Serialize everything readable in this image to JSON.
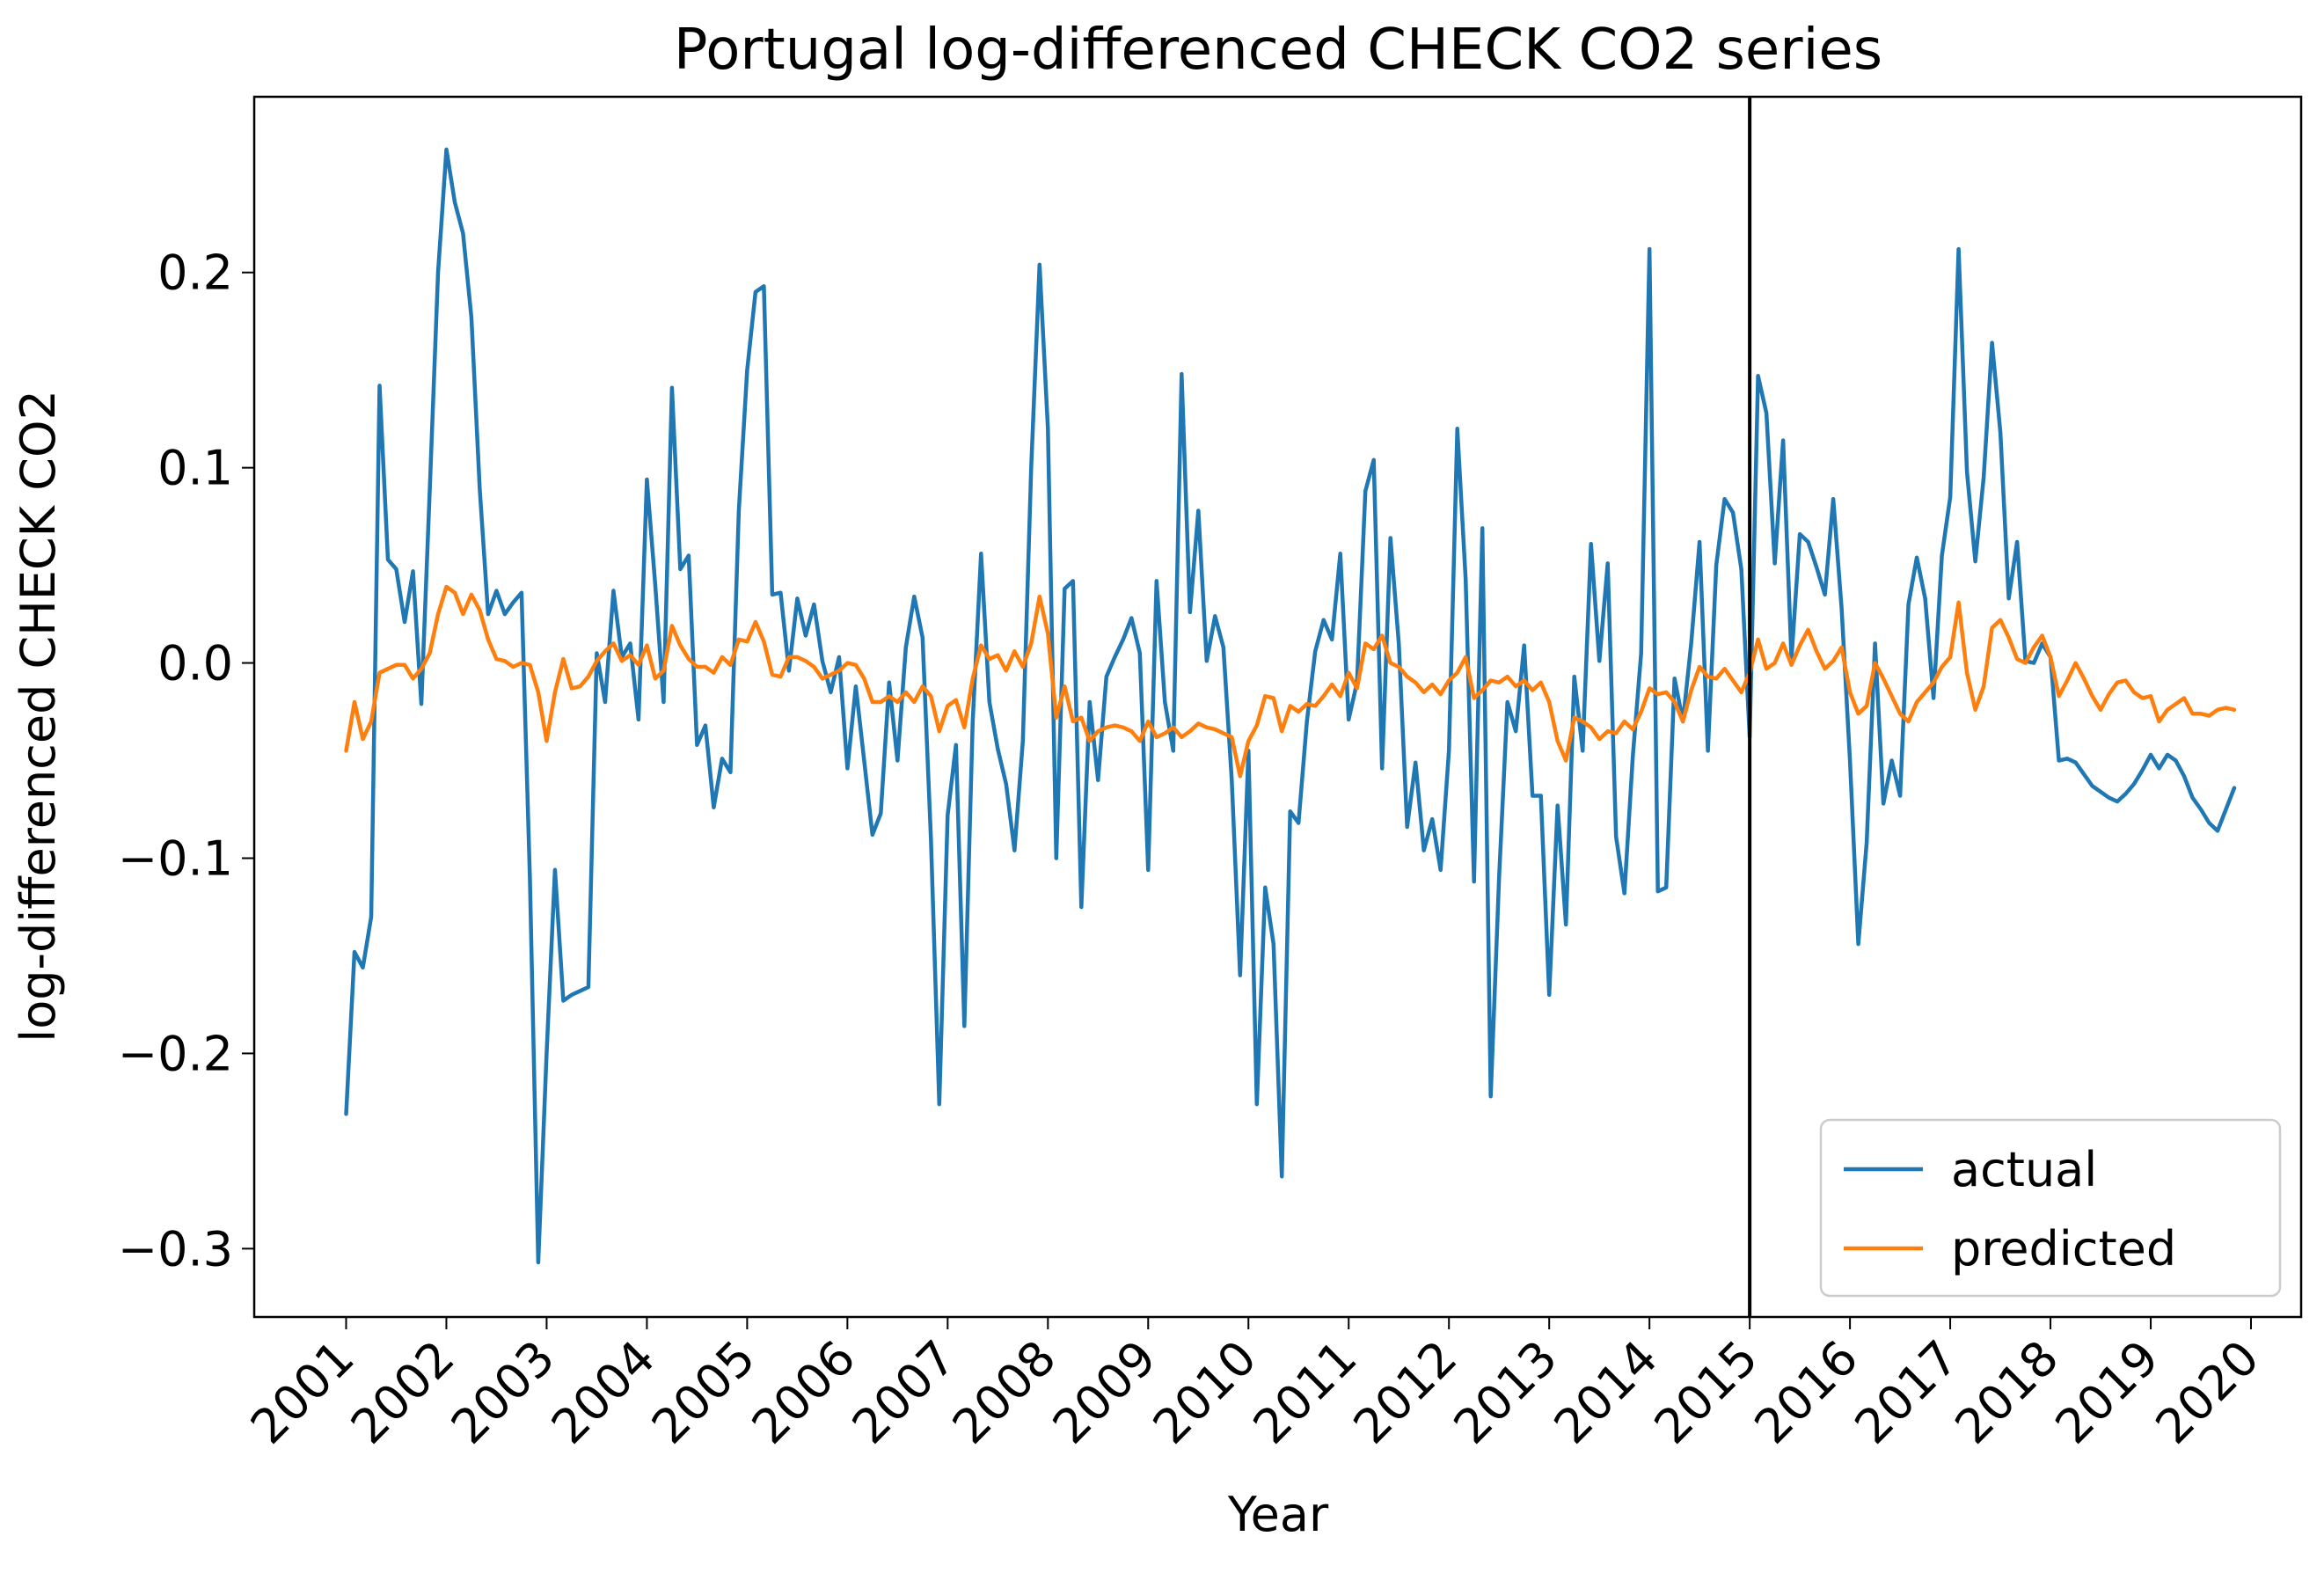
{
  "chart_data": {
    "type": "line",
    "title": "Portugal log-differenced CHECK CO2 series",
    "xlabel": "Year",
    "ylabel": "log-differenced CHECK CO2",
    "x_ticks": [
      "2001",
      "2002",
      "2003",
      "2004",
      "2005",
      "2006",
      "2007",
      "2008",
      "2009",
      "2010",
      "2011",
      "2012",
      "2013",
      "2014",
      "2015",
      "2016",
      "2017",
      "2018",
      "2019",
      "2020"
    ],
    "y_ticks": [
      0.2,
      0.1,
      0.0,
      -0.1,
      -0.2,
      -0.3
    ],
    "y_tick_labels": [
      "0.2",
      "0.1",
      "0.0",
      "−0.1",
      "−0.2",
      "−0.3"
    ],
    "xlim": [
      "2000-02",
      "2020-07"
    ],
    "ylim": [
      -0.335,
      0.29
    ],
    "vline": "2015-01",
    "legend_position": "lower-right",
    "colors": {
      "actual": "#1f77b4",
      "predicted": "#ff7f0e",
      "vline": "#000000"
    },
    "series": [
      {
        "name": "actual",
        "start": "2001-01",
        "values": [
          -0.231,
          -0.148,
          -0.156,
          -0.13,
          0.142,
          0.053,
          0.048,
          0.021,
          0.047,
          -0.021,
          0.088,
          0.2,
          0.263,
          0.236,
          0.22,
          0.177,
          0.089,
          0.025,
          0.037,
          0.025,
          0.031,
          0.036,
          -0.11,
          -0.307,
          -0.2,
          -0.106,
          -0.173,
          -0.17,
          -0.168,
          -0.166,
          0.005,
          -0.02,
          0.037,
          0.003,
          0.01,
          -0.029,
          0.094,
          0.04,
          -0.02,
          0.141,
          0.048,
          0.055,
          -0.042,
          -0.032,
          -0.074,
          -0.049,
          -0.056,
          0.078,
          0.15,
          0.19,
          0.193,
          0.035,
          0.036,
          -0.004,
          0.033,
          0.014,
          0.03,
          0.001,
          -0.015,
          0.003,
          -0.054,
          -0.012,
          -0.05,
          -0.088,
          -0.077,
          -0.01,
          -0.05,
          0.008,
          0.034,
          0.013,
          -0.09,
          -0.226,
          -0.078,
          -0.042,
          -0.186,
          -0.03,
          0.056,
          -0.02,
          -0.044,
          -0.062,
          -0.096,
          -0.04,
          0.1,
          0.204,
          0.12,
          -0.1,
          0.038,
          0.042,
          -0.125,
          -0.02,
          -0.06,
          -0.007,
          0.003,
          0.012,
          0.023,
          0.005,
          -0.106,
          0.042,
          -0.02,
          -0.045,
          0.148,
          0.026,
          0.078,
          0.001,
          0.024,
          0.008,
          -0.06,
          -0.16,
          -0.045,
          -0.226,
          -0.115,
          -0.144,
          -0.263,
          -0.076,
          -0.082,
          -0.03,
          0.006,
          0.022,
          0.012,
          0.056,
          -0.029,
          -0.01,
          0.088,
          0.104,
          -0.054,
          0.064,
          0.01,
          -0.084,
          -0.051,
          -0.096,
          -0.08,
          -0.106,
          -0.045,
          0.12,
          0.043,
          -0.112,
          0.069,
          -0.222,
          -0.11,
          -0.02,
          -0.035,
          0.009,
          -0.068,
          -0.068,
          -0.17,
          -0.073,
          -0.134,
          -0.007,
          -0.045,
          0.061,
          0.001,
          0.051,
          -0.089,
          -0.118,
          -0.048,
          0.005,
          0.212,
          -0.117,
          -0.115,
          -0.008,
          -0.03,
          0.01,
          0.062,
          -0.045,
          0.05,
          0.084,
          0.077,
          0.048,
          -0.038,
          0.147,
          0.128,
          0.051,
          0.114,
          0.002,
          0.066,
          0.062,
          0.049,
          0.035,
          0.084,
          0.028,
          -0.05,
          -0.144,
          -0.092,
          0.01,
          -0.072,
          -0.05,
          -0.068,
          0.03,
          0.054,
          0.033,
          -0.018,
          0.055,
          0.085,
          0.212,
          0.098,
          0.052,
          0.095,
          0.164,
          0.118,
          0.033,
          0.062,
          0.001,
          0.0,
          0.01,
          0.003,
          -0.05,
          -0.049,
          -0.051,
          -0.057,
          -0.063,
          -0.066,
          -0.069,
          -0.071,
          -0.067,
          -0.062,
          -0.055,
          -0.047,
          -0.054,
          -0.047,
          -0.05,
          -0.058,
          -0.069,
          -0.075,
          -0.082,
          -0.086,
          -0.075,
          -0.064
        ]
      },
      {
        "name": "predicted",
        "start": "2001-01",
        "values": [
          -0.045,
          -0.02,
          -0.039,
          -0.03,
          -0.005,
          -0.003,
          -0.001,
          -0.001,
          -0.008,
          -0.003,
          0.005,
          0.025,
          0.039,
          0.036,
          0.025,
          0.035,
          0.027,
          0.012,
          0.002,
          0.001,
          -0.002,
          0.0,
          -0.001,
          -0.015,
          -0.04,
          -0.015,
          0.002,
          -0.013,
          -0.012,
          -0.007,
          0.001,
          0.006,
          0.01,
          0.001,
          0.004,
          -0.001,
          0.009,
          -0.008,
          -0.004,
          0.019,
          0.009,
          0.002,
          -0.002,
          -0.002,
          -0.005,
          0.003,
          -0.001,
          0.012,
          0.011,
          0.021,
          0.011,
          -0.006,
          -0.007,
          0.003,
          0.003,
          0.001,
          -0.002,
          -0.008,
          -0.006,
          -0.004,
          0.0,
          -0.001,
          -0.008,
          -0.02,
          -0.02,
          -0.017,
          -0.02,
          -0.015,
          -0.02,
          -0.012,
          -0.017,
          -0.035,
          -0.022,
          -0.019,
          -0.033,
          -0.008,
          0.009,
          0.002,
          0.004,
          -0.004,
          0.006,
          -0.002,
          0.01,
          0.034,
          0.015,
          -0.028,
          -0.012,
          -0.03,
          -0.028,
          -0.04,
          -0.035,
          -0.033,
          -0.032,
          -0.033,
          -0.035,
          -0.04,
          -0.03,
          -0.038,
          -0.036,
          -0.033,
          -0.038,
          -0.035,
          -0.031,
          -0.033,
          -0.034,
          -0.036,
          -0.038,
          -0.058,
          -0.04,
          -0.032,
          -0.017,
          -0.018,
          -0.035,
          -0.022,
          -0.025,
          -0.021,
          -0.022,
          -0.017,
          -0.011,
          -0.017,
          -0.005,
          -0.013,
          0.01,
          0.007,
          0.014,
          0.0,
          -0.002,
          -0.007,
          -0.01,
          -0.015,
          -0.011,
          -0.016,
          -0.009,
          -0.005,
          0.003,
          -0.018,
          -0.014,
          -0.009,
          -0.01,
          -0.007,
          -0.012,
          -0.009,
          -0.014,
          -0.01,
          -0.02,
          -0.04,
          -0.05,
          -0.028,
          -0.03,
          -0.033,
          -0.039,
          -0.035,
          -0.036,
          -0.03,
          -0.034,
          -0.025,
          -0.013,
          -0.016,
          -0.015,
          -0.02,
          -0.03,
          -0.014,
          -0.002,
          -0.007,
          -0.008,
          -0.003,
          -0.009,
          -0.015,
          -0.005,
          0.012,
          -0.003,
          0.0,
          0.01,
          -0.001,
          0.009,
          0.017,
          0.006,
          -0.003,
          0.001,
          0.008,
          -0.015,
          -0.026,
          -0.022,
          0.0,
          -0.008,
          -0.017,
          -0.026,
          -0.03,
          -0.02,
          -0.015,
          -0.01,
          -0.002,
          0.003,
          0.031,
          -0.005,
          -0.024,
          -0.012,
          0.018,
          0.022,
          0.013,
          0.002,
          0.0,
          0.008,
          0.014,
          0.003,
          -0.017,
          -0.009,
          0.0,
          -0.008,
          -0.017,
          -0.024,
          -0.016,
          -0.01,
          -0.009,
          -0.015,
          -0.018,
          -0.017,
          -0.03,
          -0.024,
          -0.021,
          -0.018,
          -0.026,
          -0.026,
          -0.027,
          -0.024,
          -0.023,
          -0.024
        ]
      }
    ]
  }
}
